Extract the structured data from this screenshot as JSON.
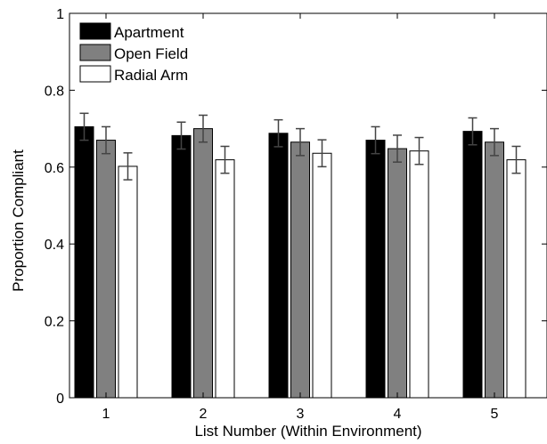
{
  "chart_data": {
    "type": "bar",
    "xlabel": "List Number (Within Environment)",
    "ylabel": "Proportion Compliant",
    "ylim": [
      0,
      1
    ],
    "y_ticks": [
      "0",
      "0.2",
      "0.4",
      "0.6",
      "0.8",
      "1"
    ],
    "categories": [
      "1",
      "2",
      "3",
      "4",
      "5"
    ],
    "legend_position": "top-left",
    "grid": false,
    "series": [
      {
        "name": "Apartment",
        "color": "#000000",
        "values": [
          0.705,
          0.682,
          0.688,
          0.67,
          0.693
        ],
        "errors": [
          0.035,
          0.035,
          0.035,
          0.035,
          0.035
        ]
      },
      {
        "name": "Open Field",
        "color": "#808080",
        "values": [
          0.67,
          0.7,
          0.665,
          0.648,
          0.665
        ],
        "errors": [
          0.035,
          0.035,
          0.035,
          0.035,
          0.035
        ]
      },
      {
        "name": "Radial Arm",
        "color": "#ffffff",
        "values": [
          0.602,
          0.619,
          0.636,
          0.642,
          0.619
        ],
        "errors": [
          0.035,
          0.035,
          0.035,
          0.035,
          0.035
        ]
      }
    ]
  }
}
